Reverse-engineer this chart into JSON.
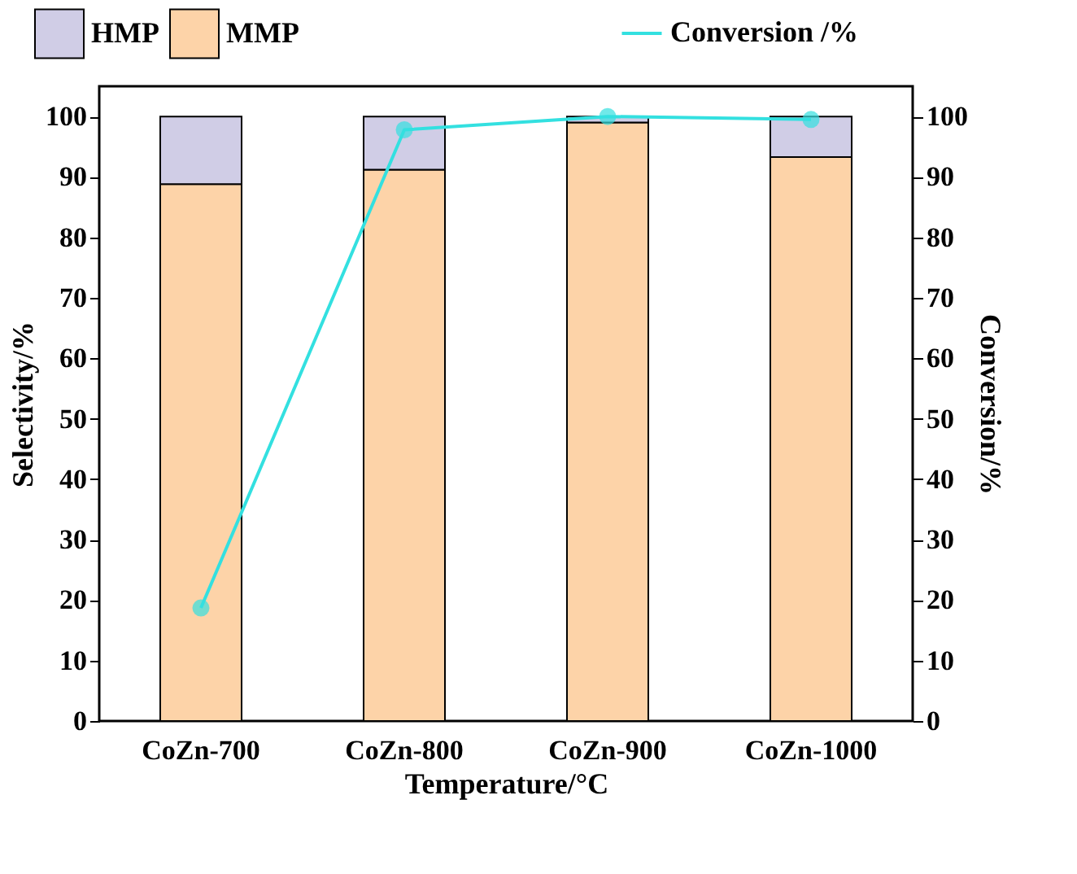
{
  "chart_data": {
    "type": "bar",
    "stacked": true,
    "xlabel": "Temperature/°C",
    "ylabel": "Selectivity/%",
    "y2label": "Conversion/%",
    "legend": "top",
    "grid": false,
    "categories": [
      "CoZn-700",
      "CoZn-800",
      "CoZn-900",
      "CoZn-1000"
    ],
    "series": [
      {
        "name": "MMP",
        "color": "#fdd3a8",
        "values": [
          88.8,
          91.2,
          99.0,
          93.3
        ]
      },
      {
        "name": "HMP",
        "color": "#d0cde6",
        "values": [
          11.2,
          8.8,
          1.0,
          6.7
        ]
      },
      {
        "name": "Conversion /%",
        "type": "line",
        "axis": "y2",
        "color": "#33e0e0",
        "marker": "circle",
        "values": [
          18.7,
          97.8,
          100,
          99.5
        ]
      }
    ],
    "ylim": [
      0,
      105
    ],
    "yticks": [
      0,
      10,
      20,
      30,
      40,
      50,
      60,
      70,
      80,
      90,
      100
    ],
    "y2lim": [
      0,
      105
    ],
    "y2ticks": [
      0,
      10,
      20,
      30,
      40,
      50,
      60,
      70,
      80,
      90,
      100
    ]
  }
}
